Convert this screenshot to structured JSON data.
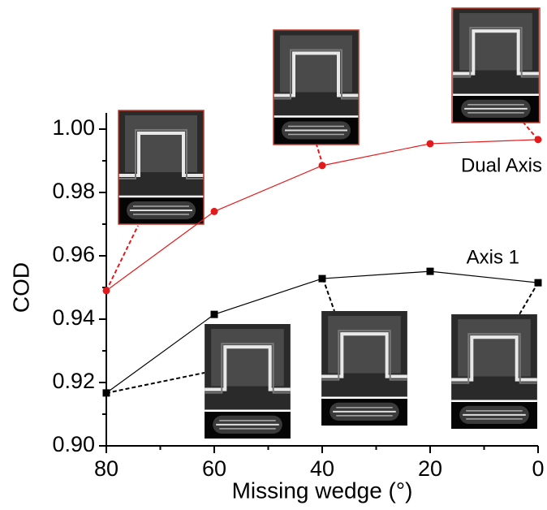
{
  "chart_data": {
    "type": "line",
    "x_label": "Missing wedge (°)",
    "y_label": "COD",
    "x": [
      80,
      60,
      40,
      20,
      0
    ],
    "series": [
      {
        "name": "Dual Axis",
        "color": "#e31a1c",
        "marker": "circle",
        "values": [
          0.949,
          0.974,
          0.9885,
          0.9954,
          0.9967
        ]
      },
      {
        "name": "Axis 1",
        "color": "#000000",
        "marker": "square",
        "values": [
          0.9167,
          0.9415,
          0.9528,
          0.9551,
          0.9515
        ]
      }
    ],
    "xlim": [
      80,
      0
    ],
    "xticks": [
      80,
      60,
      40,
      20,
      0
    ],
    "xminorticks": [
      70,
      50,
      30,
      10
    ],
    "ylim": [
      0.9,
      1.0
    ],
    "yticks": [
      {
        "value": 0.9,
        "label": "0.90"
      },
      {
        "value": 0.92,
        "label": "0.92"
      },
      {
        "value": 0.94,
        "label": "0.94"
      },
      {
        "value": 0.96,
        "label": "0.96"
      },
      {
        "value": 0.98,
        "label": "0.98"
      },
      {
        "value": 1.0,
        "label": "1.00"
      }
    ],
    "yminorticks": [
      0.91,
      0.93,
      0.95,
      0.97,
      0.99
    ]
  }
}
